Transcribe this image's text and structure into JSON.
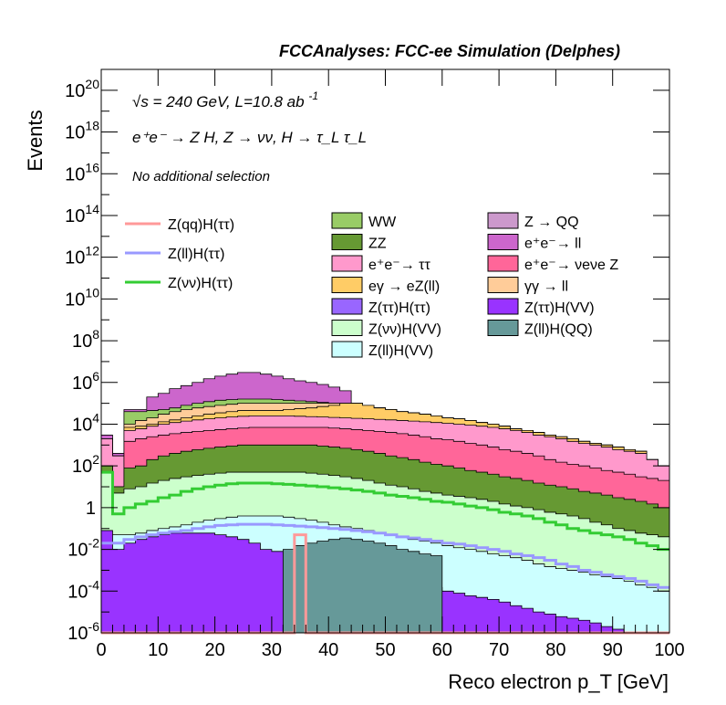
{
  "header": {
    "title": "FCCAnalyses: FCC-ee Simulation (Delphes)",
    "energy": "√s = 240 GeV, L=10.8 ab",
    "energy_exp": "-1",
    "process": "e⁺e⁻ → Z H, Z → νν, H → τ_L τ_L",
    "selection": "No additional selection"
  },
  "chart_data": {
    "type": "area",
    "title": "FCCAnalyses: FCC-ee Simulation (Delphes)",
    "xlabel": "Reco electron p_T [GeV]",
    "ylabel": "Events",
    "xlim": [
      0,
      100
    ],
    "ylim": [
      1e-06,
      1e+21
    ],
    "log_y": true,
    "bin_width": 2,
    "x_ticks": [
      0,
      10,
      20,
      30,
      40,
      50,
      60,
      70,
      80,
      90,
      100
    ],
    "y_ticks": [
      {
        "value": 1e-06,
        "base": "10",
        "exp": "-6"
      },
      {
        "value": 0.0001,
        "base": "10",
        "exp": "-4"
      },
      {
        "value": 0.01,
        "base": "10",
        "exp": "-2"
      },
      {
        "value": 1,
        "base": "1",
        "exp": ""
      },
      {
        "value": 100.0,
        "base": "10",
        "exp": "2"
      },
      {
        "value": 10000.0,
        "base": "10",
        "exp": "4"
      },
      {
        "value": 1000000.0,
        "base": "10",
        "exp": "6"
      },
      {
        "value": 100000000.0,
        "base": "10",
        "exp": "8"
      },
      {
        "value": 10000000000.0,
        "base": "10",
        "exp": "10"
      },
      {
        "value": 1000000000000.0,
        "base": "10",
        "exp": "12"
      },
      {
        "value": 100000000000000.0,
        "base": "10",
        "exp": "14"
      },
      {
        "value": 1e+16,
        "base": "10",
        "exp": "16"
      },
      {
        "value": 1e+18,
        "base": "10",
        "exp": "18"
      },
      {
        "value": 1e+20,
        "base": "10",
        "exp": "20"
      }
    ],
    "stack_tops": [
      {
        "name": "ee → ll",
        "color": "#cc66cc",
        "values": [
          3000.0,
          400.0,
          50000.0,
          50000.0,
          200000.0,
          300000.0,
          500000.0,
          700000.0,
          1000000.0,
          1500000.0,
          2000000.0,
          2500000.0,
          3000000.0,
          3000000.0,
          2500000.0,
          2000000.0,
          1500000.0,
          1200000.0,
          1000000.0,
          800000.0,
          600000.0,
          400000.0,
          100000.0,
          80000.0,
          60000.0,
          50000.0,
          40000.0,
          30000.0,
          25000.0,
          20000.0,
          15000.0,
          12000.0,
          10000.0,
          8000.0,
          6000.0,
          5000.0,
          4000.0,
          3000.0,
          2000.0,
          1500.0,
          1200.0,
          1000.0,
          800.0,
          600.0,
          500.0,
          400.0,
          300.0,
          200.0,
          150.0,
          100.0
        ]
      },
      {
        "name": "WW",
        "color": "#99cc66",
        "values": [
          2000.0,
          300.0,
          40000.0,
          40000.0,
          45000.0,
          50000.0,
          60000.0,
          80000.0,
          100000.0,
          120000.0,
          140000.0,
          150000.0,
          160000.0,
          160000.0,
          160000.0,
          150000.0,
          140000.0,
          130000.0,
          120000.0,
          110000.0,
          100000.0,
          90000.0,
          80000.0,
          70000.0,
          60000.0,
          50000.0,
          40000.0,
          35000.0,
          30000.0,
          25000.0,
          20000.0,
          18000.0,
          15000.0,
          12000.0,
          10000.0,
          8000.0,
          6000.0,
          5000.0,
          4000.0,
          3000.0,
          2500.0,
          2000.0,
          1500.0,
          1200.0,
          1000.0,
          800.0,
          600.0,
          500.0,
          200.0,
          100.0
        ]
      },
      {
        "name": "γγ → ll",
        "color": "#ffcc99",
        "values": [
          2000.0,
          300.0,
          10000.0,
          15000.0,
          20000.0,
          30000.0,
          40000.0,
          50000.0,
          60000.0,
          70000.0,
          80000.0,
          90000.0,
          100000.0,
          100000.0,
          100000.0,
          100000.0,
          100000.0,
          100000.0,
          100000.0,
          100000.0,
          100000.0,
          100000.0,
          100000.0,
          80000.0,
          60000.0,
          50000.0,
          40000.0,
          35000.0,
          30000.0,
          25000.0,
          20000.0,
          18000.0,
          15000.0,
          12000.0,
          10000.0,
          8000.0,
          6000.0,
          5000.0,
          4000.0,
          3000.0,
          2500.0,
          2000.0,
          1500.0,
          1200.0,
          1000.0,
          800.0,
          600.0,
          500.0,
          200.0,
          100.0
        ]
      },
      {
        "name": "eγ → eZ(ll)",
        "color": "#ffcc66",
        "values": [
          2000.0,
          300.0,
          7000.0,
          8000.0,
          10000.0,
          13000.0,
          16000.0,
          20000.0,
          25000.0,
          30000.0,
          35000.0,
          40000.0,
          45000.0,
          45000.0,
          45000.0,
          45000.0,
          50000.0,
          55000.0,
          60000.0,
          70000.0,
          80000.0,
          100000.0,
          100000.0,
          80000.0,
          60000.0,
          50000.0,
          40000.0,
          35000.0,
          30000.0,
          25000.0,
          20000.0,
          18000.0,
          15000.0,
          12000.0,
          10000.0,
          8000.0,
          6000.0,
          5000.0,
          4000.0,
          3000.0,
          2500.0,
          2000.0,
          1500.0,
          1200.0,
          1000.0,
          800.0,
          600.0,
          500.0,
          200.0,
          100.0
        ]
      },
      {
        "name": "ee → ττ",
        "color": "#ff99cc",
        "values": [
          2000.0,
          300.0,
          5000.0,
          6000.0,
          8000.0,
          10000.0,
          12000.0,
          14000.0,
          16000.0,
          18000.0,
          20000.0,
          22000.0,
          24000.0,
          25000.0,
          25000.0,
          25000.0,
          25000.0,
          24000.0,
          23000.0,
          22000.0,
          21000.0,
          20000.0,
          19000.0,
          18000.0,
          17000.0,
          16000.0,
          15000.0,
          14000.0,
          13000.0,
          12000.0,
          11000.0,
          10000.0,
          9000.0,
          8000.0,
          7000.0,
          6000.0,
          5000.0,
          4000.0,
          3000.0,
          2500.0,
          2000.0,
          1500.0,
          1200.0,
          1000.0,
          800.0,
          600.0,
          500.0,
          400.0,
          200.0,
          100.0
        ]
      },
      {
        "name": "ee → νeνe Z",
        "color": "#ff6699",
        "values": [
          100.0,
          10.0,
          1500.0,
          2000.0,
          2500.0,
          3000.0,
          3500.0,
          4000.0,
          4500.0,
          5000.0,
          5500.0,
          6000.0,
          6500.0,
          7000.0,
          7000.0,
          7000.0,
          7000.0,
          7000.0,
          7000.0,
          7000.0,
          6500.0,
          6000.0,
          5500.0,
          5000.0,
          4500.0,
          4000.0,
          3500.0,
          3000.0,
          2500.0,
          2000.0,
          1800.0,
          1500.0,
          1200.0,
          1000.0,
          800.0,
          600.0,
          500.0,
          400.0,
          300.0,
          200.0,
          150.0,
          120.0,
          100.0,
          80.0,
          60.0,
          50.0,
          40.0,
          30.0,
          25.0,
          20.0
        ]
      },
      {
        "name": "ZZ",
        "color": "#669933",
        "values": [
          100.0,
          10.0,
          80.0,
          100.0,
          200.0,
          300.0,
          400.0,
          500.0,
          600.0,
          700.0,
          800.0,
          900.0,
          1000.0,
          1000.0,
          1000.0,
          1000.0,
          1000.0,
          1000.0,
          1000.0,
          900.0,
          800.0,
          700.0,
          600.0,
          500.0,
          400.0,
          300.0,
          250.0,
          200.0,
          150.0,
          120.0,
          100.0,
          80.0,
          60.0,
          50.0,
          40.0,
          30.0,
          25.0,
          20.0,
          15.0,
          12.0,
          10.0,
          8,
          6,
          5,
          4,
          3,
          2.5,
          2,
          1.5,
          1
        ]
      },
      {
        "name": "Z(νν)H(VV)",
        "color": "#ccffcc",
        "values": [
          50.0,
          5,
          8,
          10.0,
          15.0,
          20.0,
          25.0,
          30.0,
          35.0,
          40.0,
          45.0,
          50.0,
          50.0,
          50.0,
          50.0,
          50.0,
          50.0,
          50.0,
          45.0,
          40.0,
          35.0,
          30.0,
          25.0,
          20.0,
          15.0,
          12.0,
          10.0,
          8,
          6,
          5,
          4,
          3.5,
          3,
          2.5,
          2,
          1.5,
          1.2,
          1,
          0.8,
          0.6,
          0.5,
          0.4,
          0.3,
          0.2,
          0.15,
          0.1,
          0.08,
          0.06,
          0.05,
          0.04
        ]
      },
      {
        "name": "Z(ll)H(VV)",
        "color": "#ccffff",
        "values": [
          0.05,
          0.05,
          0.05,
          0.06,
          0.08,
          0.1,
          0.12,
          0.15,
          0.2,
          0.25,
          0.3,
          0.35,
          0.4,
          0.4,
          0.4,
          0.4,
          0.35,
          0.3,
          0.25,
          0.2,
          0.15,
          0.12,
          0.1,
          0.08,
          0.06,
          0.05,
          0.04,
          0.03,
          0.025,
          0.02,
          0.015,
          0.012,
          0.01,
          0.008,
          0.006,
          0.005,
          0.004,
          0.003,
          0.002,
          0.0015,
          0.0012,
          0.001,
          0.0008,
          0.0006,
          0.0005,
          0.0004,
          0.0003,
          0.0002,
          0.00015,
          0.0001
        ]
      },
      {
        "name": "Z(ττ)H(VV)",
        "color": "#9933ff",
        "values": [
          0.08,
          0.01,
          0.02,
          0.03,
          0.04,
          0.05,
          0.06,
          0.06,
          0.06,
          0.06,
          0.05,
          0.04,
          0.03,
          0.02,
          0.01,
          0.008,
          0.006,
          0.005,
          0.004,
          0.003,
          0.002,
          0.0015,
          0.001,
          0.0008,
          0.0006,
          0.0005,
          0.0004,
          0.0003,
          0.0002,
          0.00015,
          0.0001,
          8e-05,
          6e-05,
          5e-05,
          4e-05,
          3e-05,
          2e-05,
          1.5e-05,
          1e-05,
          8e-06,
          6e-06,
          5e-06,
          4e-06,
          3e-06,
          2e-06,
          1.5e-06,
          1e-06,
          1e-06,
          1e-06,
          1e-06
        ]
      },
      {
        "name": "Z(ll)H(QQ)",
        "color": "#669999",
        "values": [
          0,
          0,
          0,
          0,
          0,
          0,
          0,
          0,
          0,
          0,
          0,
          0,
          0,
          0,
          0,
          0,
          0.01,
          0.015,
          0.02,
          0.025,
          0.03,
          0.035,
          0.03,
          0.025,
          0.02,
          0.015,
          0.01,
          0.008,
          0.006,
          0.005,
          0,
          0,
          0,
          0,
          0,
          0,
          0,
          0,
          0,
          0,
          0,
          0,
          0,
          0,
          0,
          0,
          0,
          0,
          0,
          0
        ]
      }
    ],
    "lines": [
      {
        "name": "Z(qq)H(ττ)",
        "color": "#ff9999",
        "values": [
          0,
          0,
          0,
          0,
          0,
          0,
          0,
          0,
          0,
          0,
          0,
          0,
          0,
          0,
          0,
          0,
          0,
          0.05,
          0,
          0,
          0,
          0,
          0,
          0,
          0,
          0,
          0,
          0,
          0,
          0,
          0,
          0,
          0,
          0,
          0,
          0,
          0,
          0,
          0,
          0,
          0,
          0,
          0,
          0,
          0,
          0,
          0,
          0,
          0,
          0
        ]
      },
      {
        "name": "Z(ll)H(ττ)",
        "color": "#9999ff",
        "values": [
          0.02,
          0.02,
          0.03,
          0.04,
          0.05,
          0.06,
          0.07,
          0.08,
          0.1,
          0.12,
          0.14,
          0.15,
          0.16,
          0.16,
          0.16,
          0.15,
          0.14,
          0.13,
          0.12,
          0.11,
          0.1,
          0.09,
          0.08,
          0.07,
          0.06,
          0.05,
          0.04,
          0.035,
          0.03,
          0.025,
          0.02,
          0.018,
          0.015,
          0.012,
          0.01,
          0.008,
          0.006,
          0.005,
          0.004,
          0.003,
          0.002,
          0.0015,
          0.001,
          0.0008,
          0.0006,
          0.0005,
          0.0004,
          0.0003,
          0.0002,
          0.00015
        ]
      },
      {
        "name": "Z(νν)H(ττ)",
        "color": "#33cc33",
        "values": [
          50.0,
          0.5,
          1,
          1.5,
          2,
          3,
          4,
          6,
          8,
          10.0,
          12.0,
          14.0,
          15.0,
          15.0,
          15.0,
          14.0,
          13.0,
          12.0,
          11.0,
          10.0,
          9,
          8,
          7,
          6,
          5,
          4,
          3.5,
          3,
          2.5,
          2,
          1.8,
          1.5,
          1.2,
          1,
          0.8,
          0.6,
          0.5,
          0.4,
          0.3,
          0.2,
          0.15,
          0.1,
          0.08,
          0.06,
          0.05,
          0.04,
          0.03,
          0.02,
          0.015,
          0.01
        ]
      }
    ],
    "legend_lines": [
      "Z(qq)H(ττ)",
      "Z(ll)H(ττ)",
      "Z(νν)H(ττ)"
    ],
    "legend_col1": [
      {
        "name": "WW",
        "color": "#99cc66"
      },
      {
        "name": "ZZ",
        "color": "#669933"
      },
      {
        "name": "e⁺e⁻→ ττ",
        "color": "#ff99cc"
      },
      {
        "name": "eγ → eZ(ll)",
        "color": "#ffcc66"
      },
      {
        "name": "Z(ττ)H(ττ)",
        "color": "#9966ff"
      },
      {
        "name": "Z(νν)H(VV)",
        "color": "#ccffcc"
      },
      {
        "name": "Z(ll)H(VV)",
        "color": "#ccffff"
      }
    ],
    "legend_col2": [
      {
        "name": "Z → QQ",
        "color": "#cc99cc"
      },
      {
        "name": "e⁺e⁻→ ll",
        "color": "#cc66cc"
      },
      {
        "name": "e⁺e⁻→ νeνe Z",
        "color": "#ff6699"
      },
      {
        "name": "γγ → ll",
        "color": "#ffcc99"
      },
      {
        "name": "Z(ττ)H(VV)",
        "color": "#9933ff"
      },
      {
        "name": "Z(ll)H(QQ)",
        "color": "#669999"
      }
    ]
  }
}
